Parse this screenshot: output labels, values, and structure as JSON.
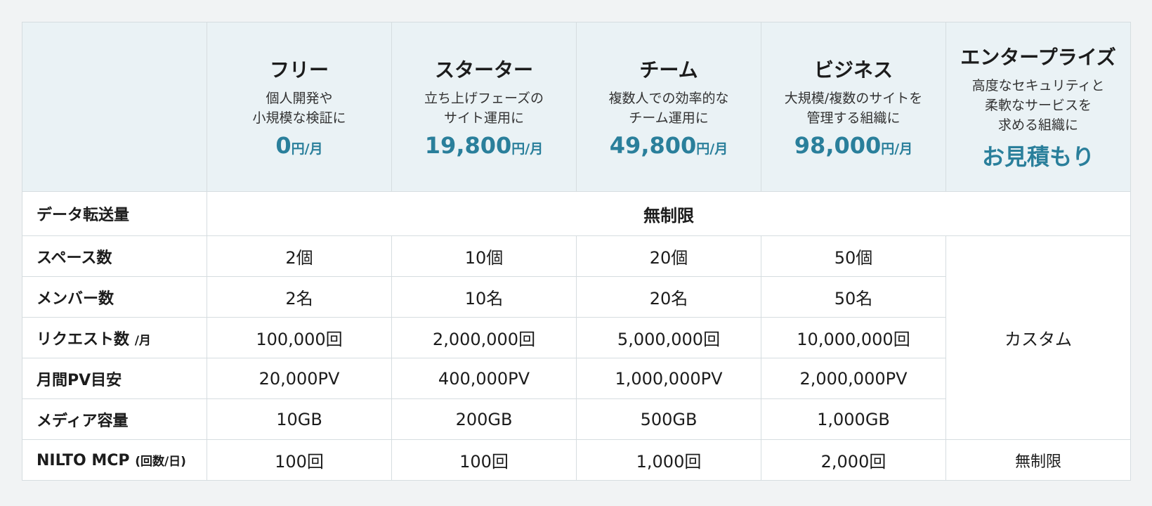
{
  "table": {
    "plans": [
      {
        "name": "フリー",
        "description": [
          "個人開発や",
          "小規模な検証に"
        ],
        "price": "0",
        "unit": "円/月"
      },
      {
        "name": "スターター",
        "description": [
          "立ち上げフェーズの",
          "サイト運用に"
        ],
        "price": "19,800",
        "unit": "円/月"
      },
      {
        "name": "チーム",
        "description": [
          "複数人での効率的な",
          "チーム運用に"
        ],
        "price": "49,800",
        "unit": "円/月"
      },
      {
        "name": "ビジネス",
        "description": [
          "大規模/複数のサイトを",
          "管理する組織に"
        ],
        "price": "98,000",
        "unit": "円/月"
      },
      {
        "name": "エンタープライズ",
        "description": [
          "高度なセキュリティと",
          "柔軟なサービスを",
          "求める組織に"
        ],
        "price": "お見積もり"
      }
    ],
    "transfer_row": {
      "label": "データ転送量",
      "value": "無制限"
    },
    "rows": [
      {
        "label": "スペース数",
        "values": [
          "2個",
          "10個",
          "20個",
          "50個"
        ]
      },
      {
        "label": "メンバー数",
        "values": [
          "2名",
          "10名",
          "20名",
          "50名"
        ]
      },
      {
        "label": "リクエスト数",
        "label_note": "/月",
        "values": [
          "100,000回",
          "2,000,000回",
          "5,000,000回",
          "10,000,000回"
        ]
      },
      {
        "label": "月間PV目安",
        "values": [
          "20,000PV",
          "400,000PV",
          "1,000,000PV",
          "2,000,000PV"
        ]
      },
      {
        "label": "メディア容量",
        "values": [
          "10GB",
          "200GB",
          "500GB",
          "1,000GB"
        ]
      }
    ],
    "custom": "カスタム",
    "mcp_row": {
      "label": "NILTO MCP",
      "label_note": "(回数/日)",
      "values": [
        "100回",
        "100回",
        "1,000回",
        "2,000回",
        "無制限"
      ]
    }
  }
}
